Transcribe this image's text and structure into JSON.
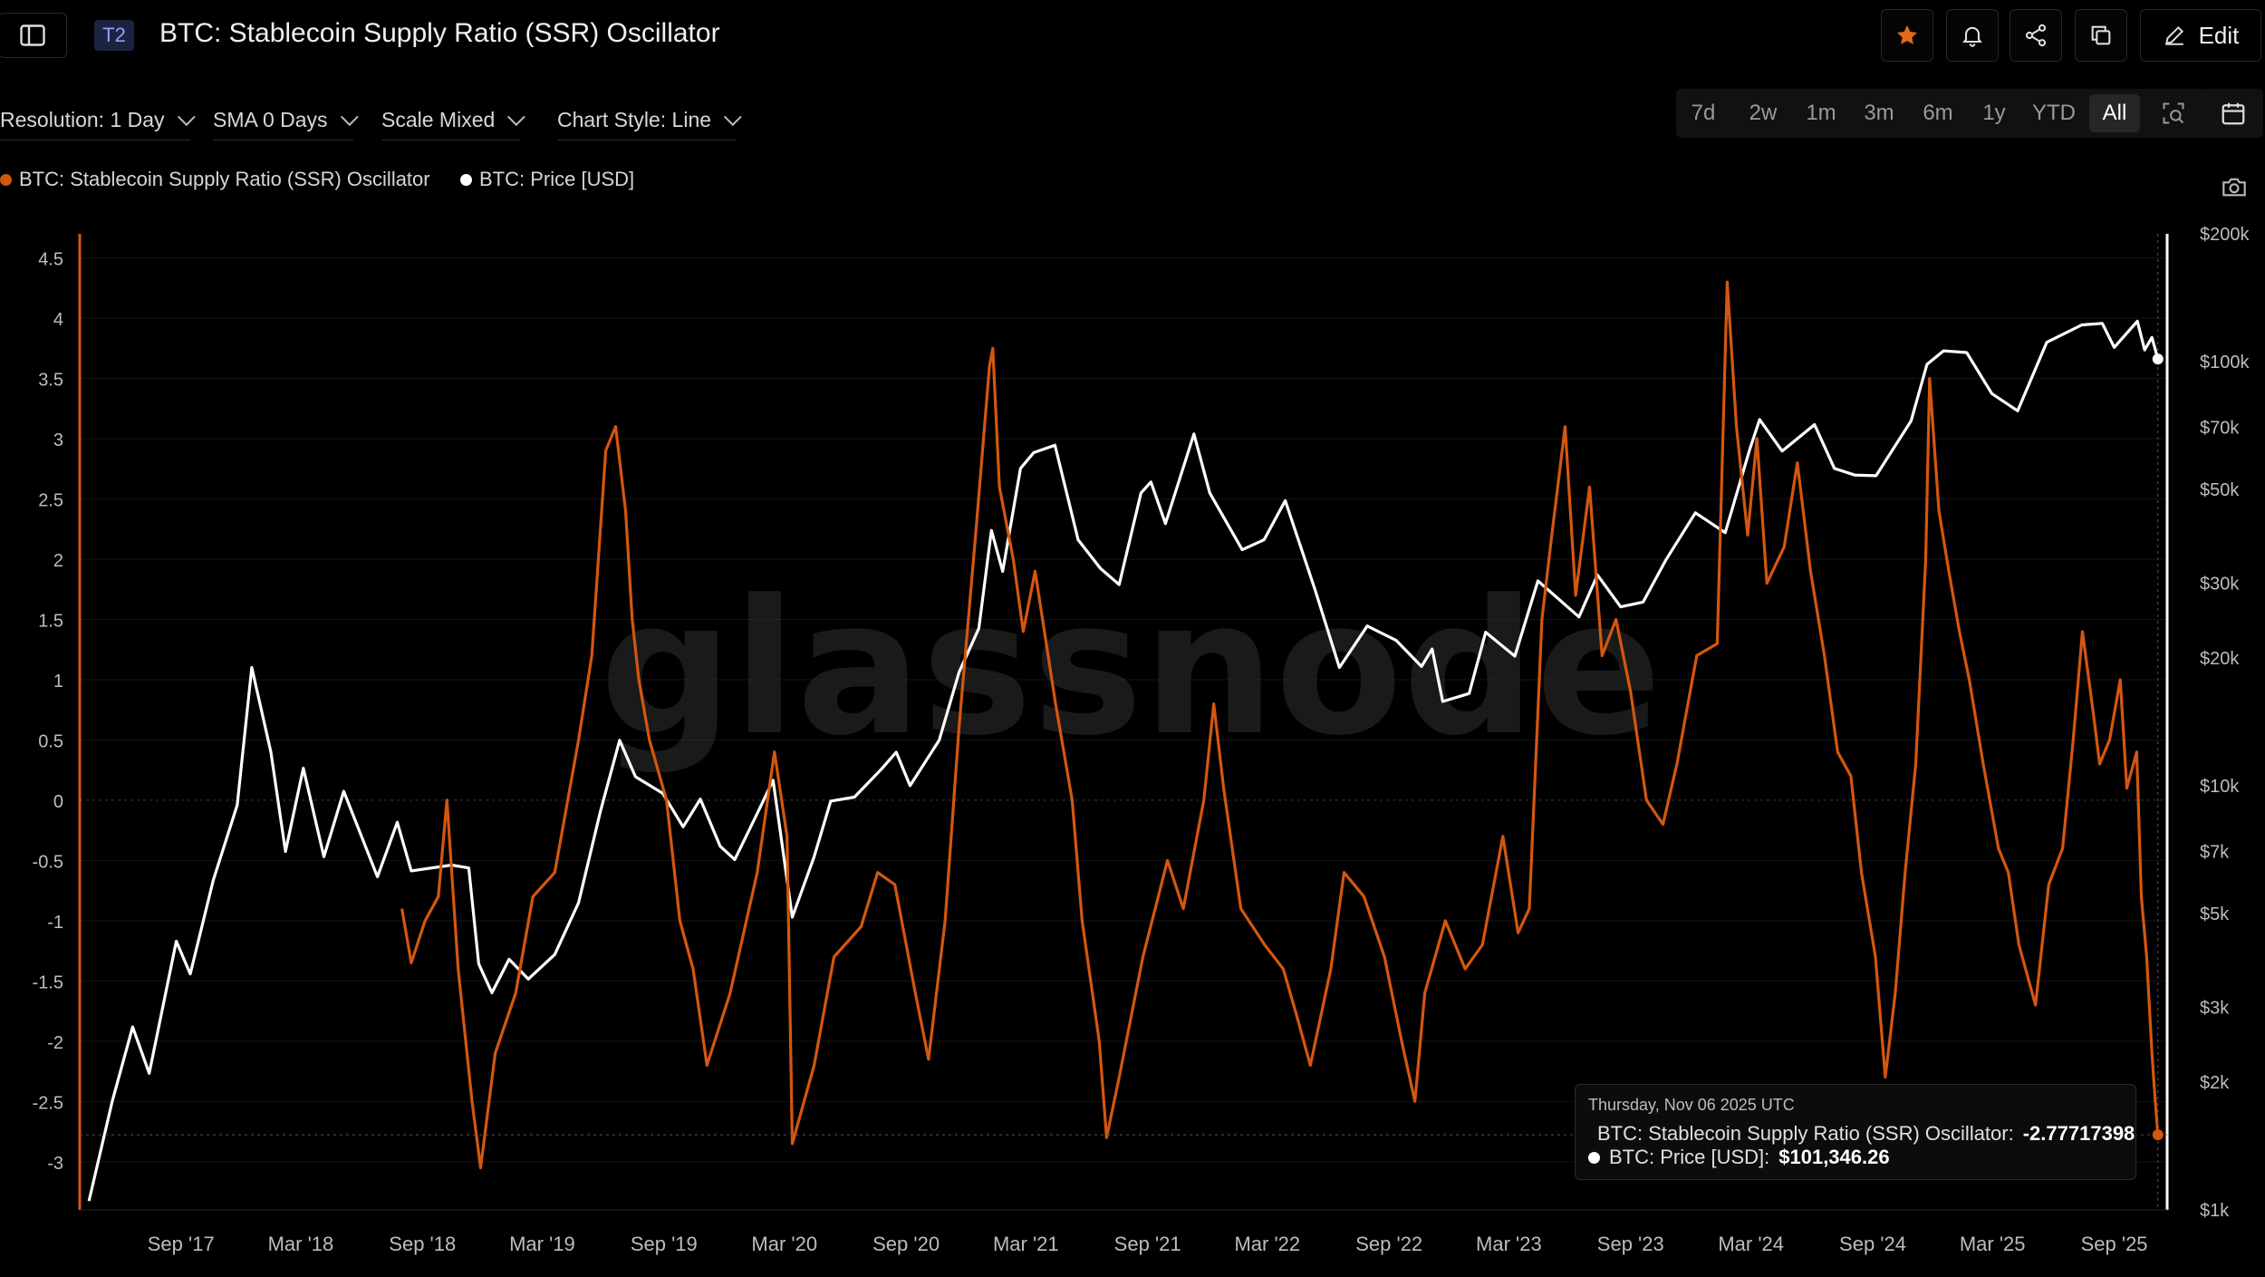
{
  "header": {
    "tier_badge": "T2",
    "title": "BTC: Stablecoin Supply Ratio (SSR) Oscillator",
    "edit_label": "Edit"
  },
  "controls": {
    "resolution": "Resolution: 1 Day",
    "sma": "SMA 0 Days",
    "scale": "Scale Mixed",
    "chart_style": "Chart Style: Line"
  },
  "ranges": [
    "7d",
    "2w",
    "1m",
    "3m",
    "6m",
    "1y",
    "YTD",
    "All"
  ],
  "active_range": "All",
  "icons": {
    "sidebar": "sidebar-toggle-icon",
    "star": "star-icon",
    "bell": "bell-icon",
    "share": "share-icon",
    "copy": "copy-icon",
    "edit": "pencil-icon",
    "zoom": "zoom-select-icon",
    "calendar": "calendar-icon",
    "camera": "camera-icon"
  },
  "colors": {
    "ssr": "#d4570f",
    "price": "#ffffff",
    "star": "#e06a1b",
    "badge_bg": "#1c2340",
    "badge_text": "#8ea2ff"
  },
  "legend": {
    "ssr": "BTC: Stablecoin Supply Ratio (SSR) Oscillator",
    "price": "BTC: Price [USD]"
  },
  "watermark": "glassnode",
  "tooltip": {
    "date": "Thursday, Nov 06 2025 UTC",
    "ssr_label": "BTC: Stablecoin Supply Ratio (SSR) Oscillator:",
    "ssr_value": "-2.77717398",
    "price_label": "BTC: Price [USD]:",
    "price_value": "$101,346.26"
  },
  "chart_data": {
    "type": "line",
    "left_axis": {
      "ticks": [
        4.5,
        4,
        3.5,
        3,
        2.5,
        2,
        1.5,
        1,
        0.5,
        0,
        -0.5,
        -1,
        -1.5,
        -2,
        -2.5,
        -3
      ],
      "tick_labels": [
        "4.5",
        "4",
        "3.5",
        "3",
        "2.5",
        "2",
        "1.5",
        "1",
        "0.5",
        "0",
        "-0.5",
        "-1",
        "-1.5",
        "-2",
        "-2.5",
        "-3"
      ],
      "range": [
        -3.4,
        4.7
      ]
    },
    "right_axis": {
      "scale": "log",
      "ticks": [
        200000,
        100000,
        70000,
        50000,
        30000,
        20000,
        10000,
        7000,
        5000,
        3000,
        2000,
        1000
      ],
      "tick_labels": [
        "$200k",
        "$100k",
        "$70k",
        "$50k",
        "$30k",
        "$20k",
        "$10k",
        "$7k",
        "$5k",
        "$3k",
        "$2k",
        "$1k"
      ],
      "range": [
        1000,
        200000
      ]
    },
    "x_range": [
      "2017-04-01",
      "2025-11-20"
    ],
    "x_ticks": [
      "2017-09-01",
      "2018-03-01",
      "2018-09-01",
      "2019-03-01",
      "2019-09-01",
      "2020-03-01",
      "2020-09-01",
      "2021-03-01",
      "2021-09-01",
      "2022-03-01",
      "2022-09-01",
      "2023-03-01",
      "2023-09-01",
      "2024-03-01",
      "2024-09-01",
      "2025-03-01",
      "2025-09-01"
    ],
    "x_tick_labels": [
      "Sep '17",
      "Mar '18",
      "Sep '18",
      "Mar '19",
      "Sep '19",
      "Mar '20",
      "Sep '20",
      "Mar '21",
      "Sep '21",
      "Mar '22",
      "Sep '22",
      "Mar '23",
      "Sep '23",
      "Mar '24",
      "Sep '24",
      "Mar '25",
      "Sep '25"
    ],
    "zero_line": 0,
    "marker_date": "2025-11-06",
    "series": [
      {
        "name": "BTC: Price [USD]",
        "axis": "right",
        "points": [
          [
            "2017-04-15",
            1050
          ],
          [
            "2017-05-20",
            1800
          ],
          [
            "2017-06-20",
            2700
          ],
          [
            "2017-07-15",
            2100
          ],
          [
            "2017-08-25",
            4300
          ],
          [
            "2017-09-15",
            3600
          ],
          [
            "2017-10-20",
            6000
          ],
          [
            "2017-11-25",
            9000
          ],
          [
            "2017-12-17",
            19000
          ],
          [
            "2018-01-15",
            12000
          ],
          [
            "2018-02-06",
            7000
          ],
          [
            "2018-03-05",
            11000
          ],
          [
            "2018-04-05",
            6800
          ],
          [
            "2018-05-05",
            9700
          ],
          [
            "2018-06-25",
            6100
          ],
          [
            "2018-07-25",
            8200
          ],
          [
            "2018-08-15",
            6300
          ],
          [
            "2018-10-15",
            6500
          ],
          [
            "2018-11-10",
            6400
          ],
          [
            "2018-11-25",
            3800
          ],
          [
            "2018-12-15",
            3250
          ],
          [
            "2019-01-10",
            3900
          ],
          [
            "2019-02-08",
            3500
          ],
          [
            "2019-03-20",
            4000
          ],
          [
            "2019-04-25",
            5300
          ],
          [
            "2019-05-28",
            8700
          ],
          [
            "2019-06-26",
            12800
          ],
          [
            "2019-07-20",
            10500
          ],
          [
            "2019-08-30",
            9600
          ],
          [
            "2019-09-30",
            8000
          ],
          [
            "2019-10-26",
            9300
          ],
          [
            "2019-11-25",
            7200
          ],
          [
            "2019-12-17",
            6700
          ],
          [
            "2020-01-20",
            8600
          ],
          [
            "2020-02-13",
            10300
          ],
          [
            "2020-03-13",
            4900
          ],
          [
            "2020-04-15",
            6800
          ],
          [
            "2020-05-10",
            9200
          ],
          [
            "2020-06-15",
            9400
          ],
          [
            "2020-07-27",
            11000
          ],
          [
            "2020-08-17",
            12000
          ],
          [
            "2020-09-07",
            10000
          ],
          [
            "2020-10-21",
            12800
          ],
          [
            "2020-11-20",
            18500
          ],
          [
            "2020-12-20",
            23500
          ],
          [
            "2021-01-08",
            40000
          ],
          [
            "2021-01-25",
            32000
          ],
          [
            "2021-02-21",
            56000
          ],
          [
            "2021-03-13",
            61000
          ],
          [
            "2021-04-14",
            63500
          ],
          [
            "2021-05-19",
            38000
          ],
          [
            "2021-06-22",
            32500
          ],
          [
            "2021-07-20",
            29800
          ],
          [
            "2021-08-22",
            49000
          ],
          [
            "2021-09-06",
            52000
          ],
          [
            "2021-09-28",
            41500
          ],
          [
            "2021-11-10",
            67500
          ],
          [
            "2021-12-04",
            49000
          ],
          [
            "2022-01-22",
            36000
          ],
          [
            "2022-02-24",
            38000
          ],
          [
            "2022-03-28",
            47000
          ],
          [
            "2022-05-12",
            29000
          ],
          [
            "2022-06-18",
            19000
          ],
          [
            "2022-07-30",
            23800
          ],
          [
            "2022-09-12",
            22000
          ],
          [
            "2022-10-20",
            19100
          ],
          [
            "2022-11-05",
            21000
          ],
          [
            "2022-11-21",
            15800
          ],
          [
            "2022-12-31",
            16500
          ],
          [
            "2023-01-25",
            23000
          ],
          [
            "2023-03-10",
            20200
          ],
          [
            "2023-04-14",
            30400
          ],
          [
            "2023-06-15",
            25000
          ],
          [
            "2023-07-13",
            31400
          ],
          [
            "2023-08-17",
            26400
          ],
          [
            "2023-09-20",
            27100
          ],
          [
            "2023-10-24",
            34000
          ],
          [
            "2023-12-08",
            44000
          ],
          [
            "2024-01-22",
            39500
          ],
          [
            "2024-02-28",
            62000
          ],
          [
            "2024-03-14",
            73000
          ],
          [
            "2024-04-17",
            61500
          ],
          [
            "2024-06-05",
            71000
          ],
          [
            "2024-07-05",
            56000
          ],
          [
            "2024-08-05",
            54000
          ],
          [
            "2024-09-06",
            53800
          ],
          [
            "2024-10-29",
            72500
          ],
          [
            "2024-11-22",
            98500
          ],
          [
            "2024-12-17",
            106000
          ],
          [
            "2025-01-21",
            105000
          ],
          [
            "2025-02-28",
            84000
          ],
          [
            "2025-04-08",
            76500
          ],
          [
            "2025-05-22",
            111000
          ],
          [
            "2025-07-14",
            122000
          ],
          [
            "2025-08-14",
            123000
          ],
          [
            "2025-09-01",
            108000
          ],
          [
            "2025-10-06",
            124500
          ],
          [
            "2025-10-17",
            106500
          ],
          [
            "2025-10-28",
            114000
          ],
          [
            "2025-11-06",
            101346
          ]
        ]
      },
      {
        "name": "BTC: Stablecoin Supply Ratio (SSR) Oscillator",
        "axis": "left",
        "points": [
          [
            "2018-08-01",
            -0.9
          ],
          [
            "2018-08-15",
            -1.35
          ],
          [
            "2018-09-05",
            -1.0
          ],
          [
            "2018-09-25",
            -0.8
          ],
          [
            "2018-10-08",
            0.0
          ],
          [
            "2018-10-25",
            -1.4
          ],
          [
            "2018-11-15",
            -2.5
          ],
          [
            "2018-11-28",
            -3.05
          ],
          [
            "2018-12-20",
            -2.1
          ],
          [
            "2019-01-20",
            -1.6
          ],
          [
            "2019-02-15",
            -0.8
          ],
          [
            "2019-03-20",
            -0.6
          ],
          [
            "2019-04-25",
            0.5
          ],
          [
            "2019-05-15",
            1.2
          ],
          [
            "2019-06-05",
            2.9
          ],
          [
            "2019-06-20",
            3.1
          ],
          [
            "2019-07-05",
            2.4
          ],
          [
            "2019-07-15",
            1.5
          ],
          [
            "2019-07-25",
            1.0
          ],
          [
            "2019-08-10",
            0.5
          ],
          [
            "2019-09-05",
            0.0
          ],
          [
            "2019-09-25",
            -1.0
          ],
          [
            "2019-10-15",
            -1.4
          ],
          [
            "2019-11-05",
            -2.2
          ],
          [
            "2019-12-10",
            -1.6
          ],
          [
            "2020-01-20",
            -0.6
          ],
          [
            "2020-02-15",
            0.4
          ],
          [
            "2020-03-05",
            -0.3
          ],
          [
            "2020-03-13",
            -2.85
          ],
          [
            "2020-04-15",
            -2.2
          ],
          [
            "2020-05-15",
            -1.3
          ],
          [
            "2020-06-25",
            -1.05
          ],
          [
            "2020-07-20",
            -0.6
          ],
          [
            "2020-08-15",
            -0.7
          ],
          [
            "2020-09-15",
            -1.6
          ],
          [
            "2020-10-05",
            -2.15
          ],
          [
            "2020-10-30",
            -1.0
          ],
          [
            "2020-11-20",
            0.6
          ],
          [
            "2020-12-15",
            2.2
          ],
          [
            "2021-01-05",
            3.6
          ],
          [
            "2021-01-10",
            3.75
          ],
          [
            "2021-01-20",
            2.6
          ],
          [
            "2021-02-10",
            2.0
          ],
          [
            "2021-02-25",
            1.4
          ],
          [
            "2021-03-15",
            1.9
          ],
          [
            "2021-04-15",
            0.8
          ],
          [
            "2021-05-10",
            0.0
          ],
          [
            "2021-05-25",
            -1.0
          ],
          [
            "2021-06-20",
            -2.0
          ],
          [
            "2021-07-01",
            -2.8
          ],
          [
            "2021-07-20",
            -2.3
          ],
          [
            "2021-08-25",
            -1.3
          ],
          [
            "2021-10-01",
            -0.5
          ],
          [
            "2021-10-25",
            -0.9
          ],
          [
            "2021-11-25",
            0.0
          ],
          [
            "2021-12-10",
            0.8
          ],
          [
            "2021-12-25",
            0.1
          ],
          [
            "2022-01-20",
            -0.9
          ],
          [
            "2022-02-25",
            -1.2
          ],
          [
            "2022-03-25",
            -1.4
          ],
          [
            "2022-04-15",
            -1.8
          ],
          [
            "2022-05-05",
            -2.2
          ],
          [
            "2022-06-05",
            -1.4
          ],
          [
            "2022-06-25",
            -0.6
          ],
          [
            "2022-07-25",
            -0.8
          ],
          [
            "2022-08-25",
            -1.3
          ],
          [
            "2022-09-20",
            -2.0
          ],
          [
            "2022-10-10",
            -2.5
          ],
          [
            "2022-10-25",
            -1.6
          ],
          [
            "2022-11-25",
            -1.0
          ],
          [
            "2022-12-25",
            -1.4
          ],
          [
            "2023-01-20",
            -1.2
          ],
          [
            "2023-02-20",
            -0.3
          ],
          [
            "2023-03-15",
            -1.1
          ],
          [
            "2023-04-01",
            -0.9
          ],
          [
            "2023-04-20",
            1.5
          ],
          [
            "2023-05-05",
            2.2
          ],
          [
            "2023-05-25",
            3.1
          ],
          [
            "2023-06-10",
            1.7
          ],
          [
            "2023-07-01",
            2.6
          ],
          [
            "2023-07-20",
            1.2
          ],
          [
            "2023-08-10",
            1.5
          ],
          [
            "2023-09-01",
            0.9
          ],
          [
            "2023-09-25",
            0.0
          ],
          [
            "2023-10-20",
            -0.2
          ],
          [
            "2023-11-10",
            0.3
          ],
          [
            "2023-12-10",
            1.2
          ],
          [
            "2024-01-10",
            1.3
          ],
          [
            "2024-01-25",
            4.3
          ],
          [
            "2024-02-08",
            3.1
          ],
          [
            "2024-02-25",
            2.2
          ],
          [
            "2024-03-10",
            3.0
          ],
          [
            "2024-03-25",
            1.8
          ],
          [
            "2024-04-20",
            2.1
          ],
          [
            "2024-05-10",
            2.8
          ],
          [
            "2024-05-30",
            1.9
          ],
          [
            "2024-06-20",
            1.2
          ],
          [
            "2024-07-10",
            0.4
          ],
          [
            "2024-07-30",
            0.2
          ],
          [
            "2024-08-15",
            -0.6
          ],
          [
            "2024-09-05",
            -1.3
          ],
          [
            "2024-09-20",
            -2.3
          ],
          [
            "2024-10-05",
            -1.6
          ],
          [
            "2024-10-20",
            -0.6
          ],
          [
            "2024-11-05",
            0.3
          ],
          [
            "2024-11-20",
            2.0
          ],
          [
            "2024-11-26",
            3.5
          ],
          [
            "2024-12-10",
            2.4
          ],
          [
            "2024-12-25",
            1.9
          ],
          [
            "2025-01-10",
            1.4
          ],
          [
            "2025-01-25",
            1.0
          ],
          [
            "2025-02-15",
            0.3
          ],
          [
            "2025-03-10",
            -0.4
          ],
          [
            "2025-03-25",
            -0.6
          ],
          [
            "2025-04-10",
            -1.2
          ],
          [
            "2025-05-05",
            -1.7
          ],
          [
            "2025-05-25",
            -0.7
          ],
          [
            "2025-06-15",
            -0.4
          ],
          [
            "2025-07-01",
            0.5
          ],
          [
            "2025-07-15",
            1.4
          ],
          [
            "2025-08-01",
            0.7
          ],
          [
            "2025-08-10",
            0.3
          ],
          [
            "2025-08-25",
            0.5
          ],
          [
            "2025-09-10",
            1.0
          ],
          [
            "2025-09-20",
            0.1
          ],
          [
            "2025-10-05",
            0.4
          ],
          [
            "2025-10-12",
            -0.8
          ],
          [
            "2025-10-20",
            -1.3
          ],
          [
            "2025-10-28",
            -2.1
          ],
          [
            "2025-11-02",
            -2.5
          ],
          [
            "2025-11-06",
            -2.777
          ]
        ]
      }
    ]
  }
}
